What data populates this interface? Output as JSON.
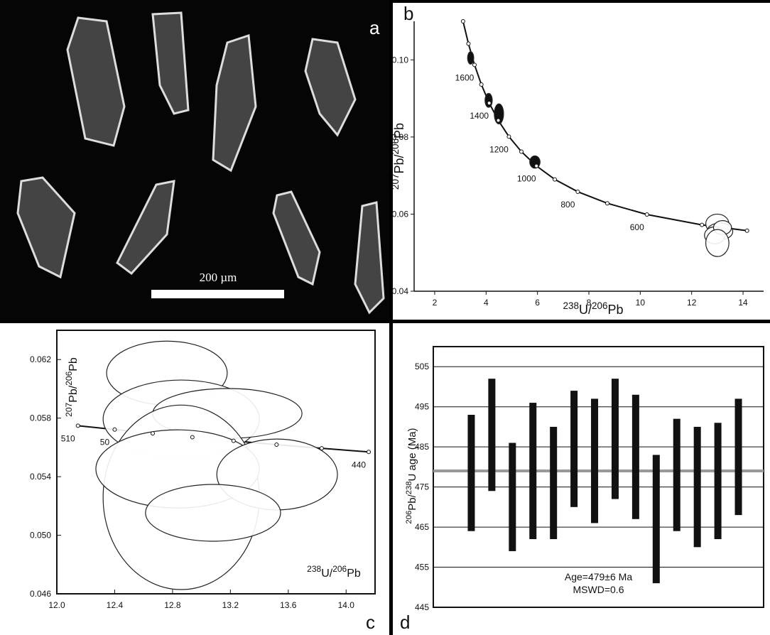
{
  "image_panel": {
    "label": "a",
    "scale_bar": "200 µm"
  },
  "chart_data": [
    {
      "type": "concordia",
      "label": "b",
      "x_label": [
        "238",
        "U/",
        "206",
        "Pb"
      ],
      "y_label": [
        "207",
        "Pb/",
        "206",
        "Pb"
      ],
      "xlim": [
        1.2,
        14.8
      ],
      "ylim": [
        0.04,
        0.11
      ],
      "xticks": [
        2,
        4,
        6,
        8,
        10,
        12,
        14
      ],
      "yticks": [
        0.04,
        0.06,
        0.08,
        {
          "value": 0.1,
          "label": "0.10"
        }
      ],
      "concordia": {
        "x": [
          3.104,
          3.314,
          3.55,
          3.817,
          4.122,
          4.476,
          4.888,
          5.374,
          5.96,
          6.674,
          7.568,
          8.718,
          10.26,
          12.4,
          14.156
        ],
        "y": [
          0.11,
          0.1042,
          0.0987,
          0.0936,
          0.0888,
          0.0843,
          0.0801,
          0.0762,
          0.0725,
          0.069,
          0.0658,
          0.0628,
          0.0599,
          0.0572,
          0.0557
        ],
        "labels": [
          null,
          null,
          "1600",
          null,
          "1400",
          null,
          "1200",
          null,
          "1000",
          null,
          "800",
          null,
          "600",
          null,
          null
        ]
      },
      "ellipses": {
        "x": [
          3.4,
          4.1,
          4.5,
          5.9,
          13.0,
          13.1,
          12.9,
          13.2,
          13.0
        ],
        "y": [
          0.1005,
          0.0895,
          0.086,
          0.0735,
          0.0575,
          0.0555,
          0.0545,
          0.0565,
          0.0525
        ],
        "rx": [
          0.12,
          0.14,
          0.18,
          0.2,
          0.45,
          0.5,
          0.4,
          0.35,
          0.45
        ],
        "ry": [
          0.0016,
          0.0018,
          0.0026,
          0.0016,
          0.0025,
          0.0022,
          0.0022,
          0.0018,
          0.0035
        ],
        "filled": [
          true,
          true,
          true,
          true,
          false,
          false,
          false,
          false,
          false
        ]
      }
    },
    {
      "type": "concordia",
      "label": "c",
      "x_label": [
        "238",
        "U/",
        "206",
        "Pb"
      ],
      "y_label": [
        "207",
        "Pb/",
        "206",
        "Pb"
      ],
      "xlim": [
        12.0,
        14.2
      ],
      "ylim": [
        0.046,
        0.064
      ],
      "xticks": [
        {
          "value": 12,
          "label": "12.0"
        },
        12.4,
        12.8,
        13.2,
        13.6,
        {
          "value": 14,
          "label": "14.0"
        }
      ],
      "yticks": [
        0.046,
        {
          "value": 0.05,
          "label": "0.050"
        },
        0.054,
        0.058,
        0.062
      ],
      "concordia": {
        "x": [
          12.146,
          12.4,
          12.663,
          12.937,
          13.222,
          13.519,
          13.831,
          14.156
        ],
        "y": [
          0.05748,
          0.05722,
          0.05696,
          0.0567,
          0.05645,
          0.05619,
          0.05594,
          0.05569
        ],
        "labels": [
          "510",
          "50",
          null,
          null,
          null,
          null,
          null,
          "440"
        ]
      },
      "ellipses": {
        "x": [
          12.761,
          12.86,
          13.179,
          12.86,
          12.835,
          13.523,
          13.08
        ],
        "y": [
          0.06108,
          0.05793,
          0.05832,
          0.05259,
          0.05453,
          0.05415,
          0.05153
        ],
        "rx": [
          0.417,
          0.54,
          0.516,
          0.54,
          0.565,
          0.417,
          0.467
        ],
        "ry": [
          0.00218,
          0.00267,
          0.0017,
          0.0063,
          0.00267,
          0.00242,
          0.00194
        ],
        "filled": [
          false,
          false,
          false,
          false,
          false,
          false,
          false
        ]
      }
    },
    {
      "type": "range",
      "label": "d",
      "y_label": [
        "206",
        "Pb/",
        "238",
        "U age (Ma)"
      ],
      "ylim": [
        445,
        510
      ],
      "yticks": [
        445,
        455,
        465,
        475,
        485,
        495,
        505
      ],
      "grid": true,
      "low": [
        464,
        474,
        459,
        462,
        462,
        470,
        466,
        472,
        467,
        451,
        464,
        460,
        462,
        468
      ],
      "high": [
        493,
        502,
        486,
        496,
        490,
        499,
        497,
        502,
        498,
        483,
        492,
        490,
        491,
        497
      ],
      "mean": 479,
      "color": "#111111",
      "mean_color": "#999999",
      "texts": [
        "Age=479±6 Ma",
        "MSWD=0.6"
      ]
    }
  ]
}
